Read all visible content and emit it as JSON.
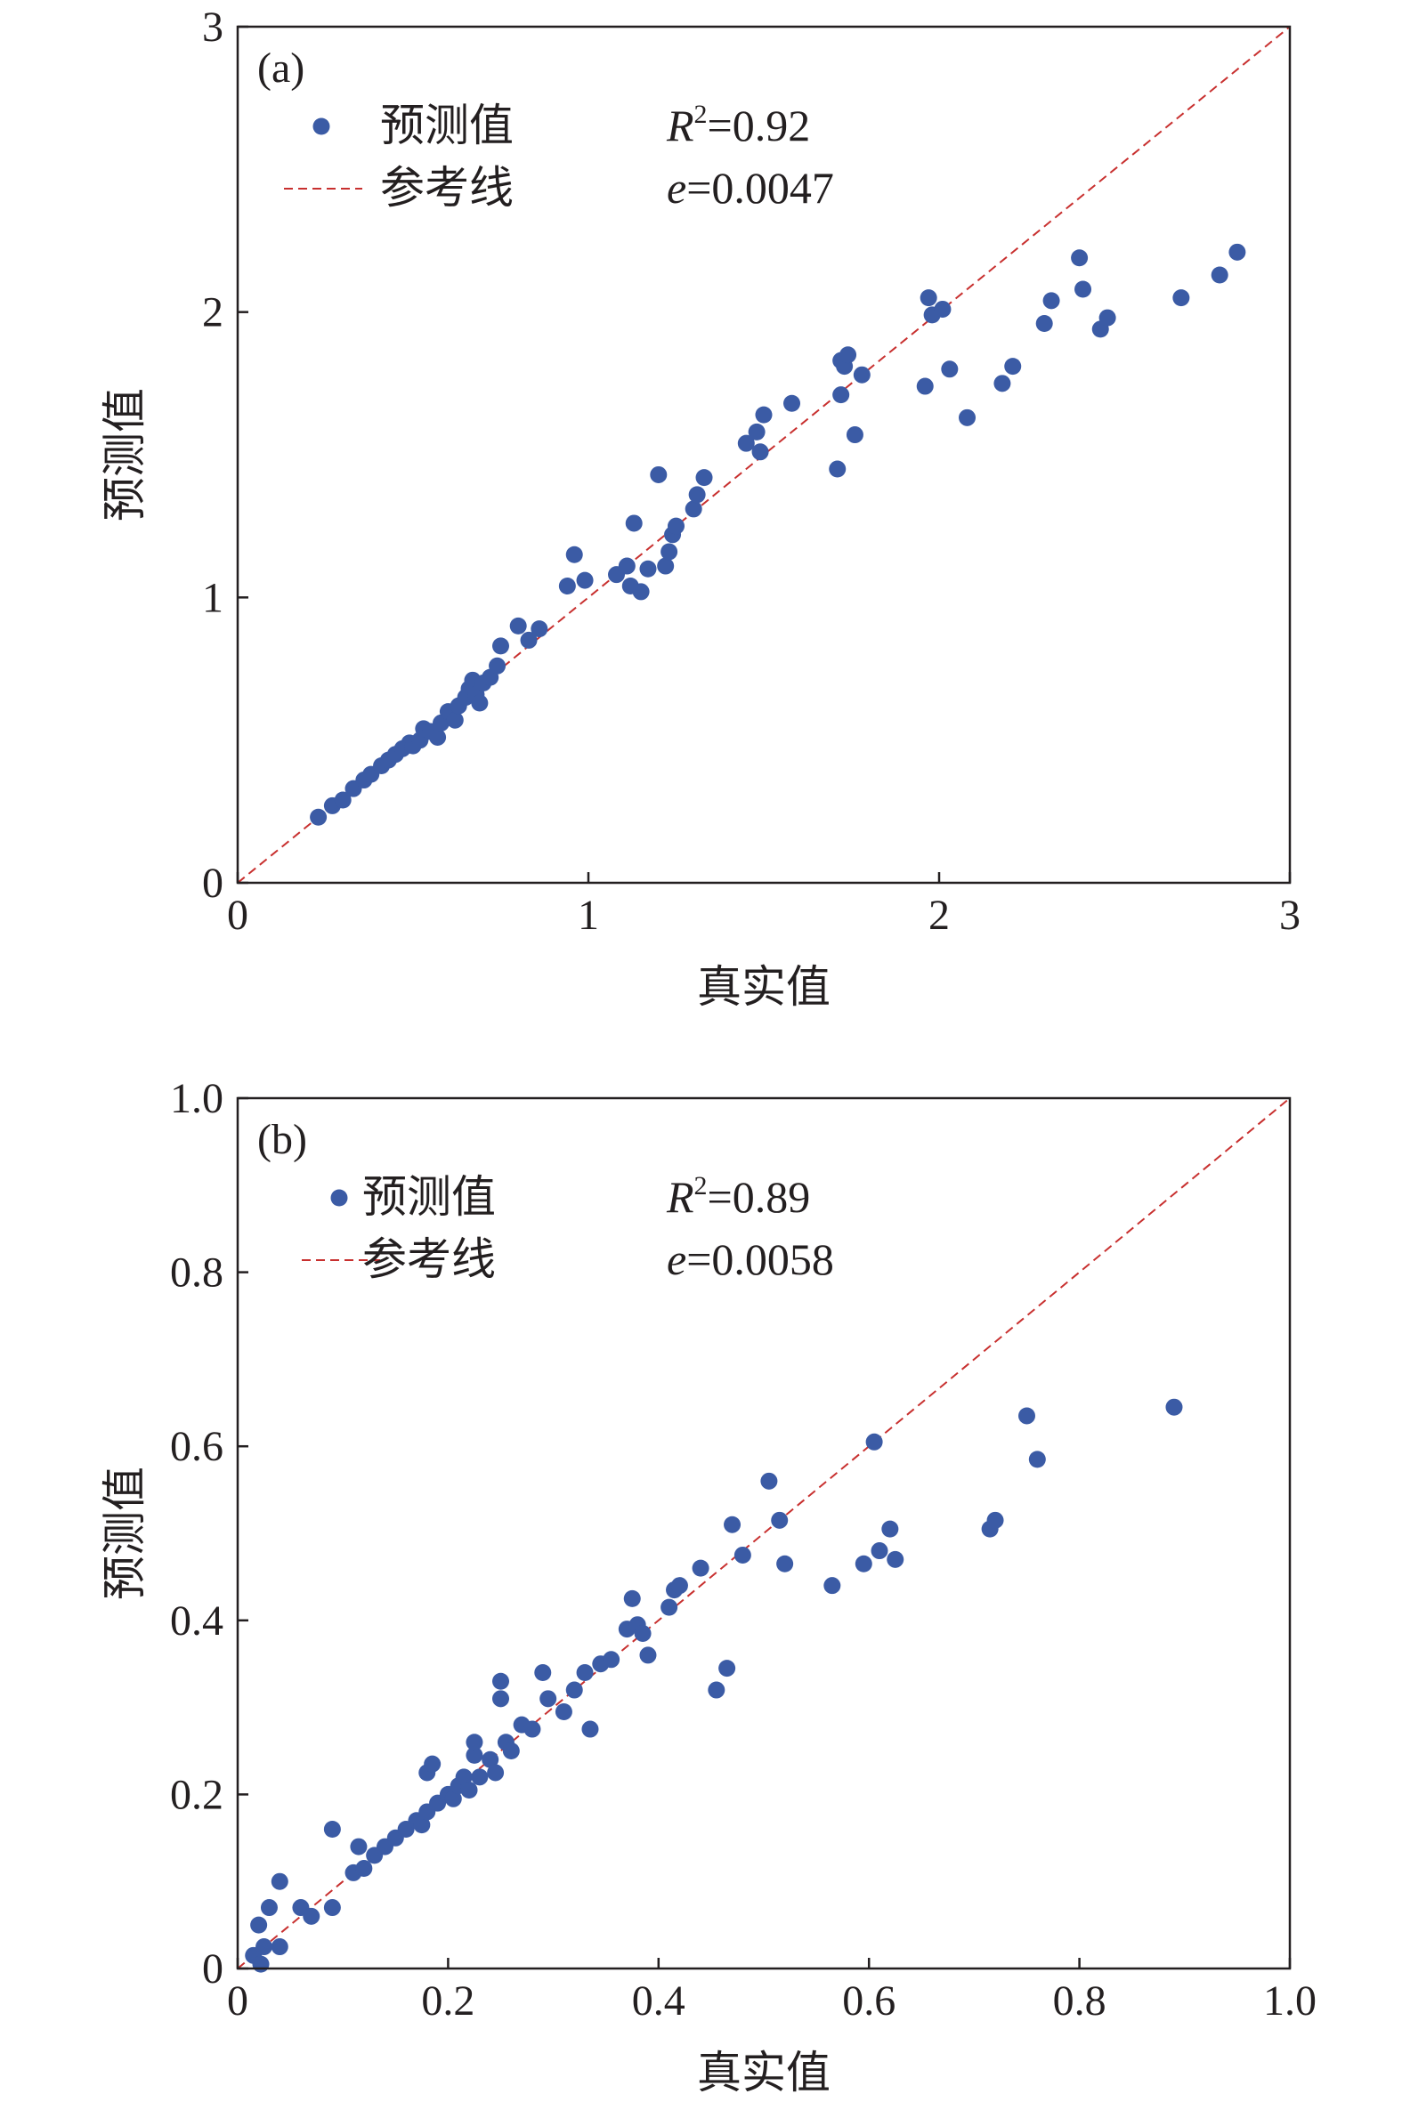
{
  "chart_data": [
    {
      "type": "scatter",
      "panel_label": "(a)",
      "xlabel": "真实值",
      "ylabel": "预测值",
      "xlim": [
        0,
        3
      ],
      "ylim": [
        0,
        3
      ],
      "xticks": [
        "0",
        "1",
        "2",
        "3"
      ],
      "yticks": [
        "0",
        "1",
        "2",
        "3"
      ],
      "legend": {
        "points": "预测值",
        "line": "参考线"
      },
      "stats": {
        "r2": "0.92",
        "e": "0.0047"
      },
      "reference_line": [
        [
          0,
          0
        ],
        [
          3,
          3
        ]
      ],
      "series": [
        {
          "name": "预测值",
          "points": [
            [
              0.23,
              0.23
            ],
            [
              0.27,
              0.27
            ],
            [
              0.3,
              0.29
            ],
            [
              0.33,
              0.33
            ],
            [
              0.36,
              0.36
            ],
            [
              0.38,
              0.38
            ],
            [
              0.41,
              0.41
            ],
            [
              0.43,
              0.43
            ],
            [
              0.45,
              0.45
            ],
            [
              0.47,
              0.47
            ],
            [
              0.49,
              0.49
            ],
            [
              0.5,
              0.48
            ],
            [
              0.52,
              0.5
            ],
            [
              0.53,
              0.54
            ],
            [
              0.55,
              0.53
            ],
            [
              0.57,
              0.51
            ],
            [
              0.58,
              0.56
            ],
            [
              0.6,
              0.6
            ],
            [
              0.62,
              0.57
            ],
            [
              0.63,
              0.62
            ],
            [
              0.65,
              0.65
            ],
            [
              0.66,
              0.68
            ],
            [
              0.67,
              0.71
            ],
            [
              0.68,
              0.66
            ],
            [
              0.69,
              0.63
            ],
            [
              0.7,
              0.7
            ],
            [
              0.72,
              0.72
            ],
            [
              0.74,
              0.76
            ],
            [
              0.75,
              0.83
            ],
            [
              0.8,
              0.9
            ],
            [
              0.83,
              0.85
            ],
            [
              0.86,
              0.89
            ],
            [
              0.94,
              1.04
            ],
            [
              0.96,
              1.15
            ],
            [
              0.99,
              1.06
            ],
            [
              1.08,
              1.08
            ],
            [
              1.11,
              1.11
            ],
            [
              1.12,
              1.04
            ],
            [
              1.13,
              1.26
            ],
            [
              1.15,
              1.02
            ],
            [
              1.17,
              1.1
            ],
            [
              1.2,
              1.43
            ],
            [
              1.22,
              1.11
            ],
            [
              1.23,
              1.16
            ],
            [
              1.24,
              1.22
            ],
            [
              1.25,
              1.25
            ],
            [
              1.3,
              1.31
            ],
            [
              1.31,
              1.36
            ],
            [
              1.33,
              1.42
            ],
            [
              1.45,
              1.54
            ],
            [
              1.48,
              1.58
            ],
            [
              1.49,
              1.51
            ],
            [
              1.5,
              1.64
            ],
            [
              1.58,
              1.68
            ],
            [
              1.71,
              1.45
            ],
            [
              1.72,
              1.71
            ],
            [
              1.72,
              1.83
            ],
            [
              1.73,
              1.81
            ],
            [
              1.74,
              1.85
            ],
            [
              1.76,
              1.57
            ],
            [
              1.78,
              1.78
            ],
            [
              1.96,
              1.74
            ],
            [
              1.97,
              2.05
            ],
            [
              1.98,
              1.99
            ],
            [
              2.01,
              2.01
            ],
            [
              2.03,
              1.8
            ],
            [
              2.08,
              1.63
            ],
            [
              2.18,
              1.75
            ],
            [
              2.21,
              1.81
            ],
            [
              2.3,
              1.96
            ],
            [
              2.32,
              2.04
            ],
            [
              2.4,
              2.19
            ],
            [
              2.41,
              2.08
            ],
            [
              2.46,
              1.94
            ],
            [
              2.48,
              1.98
            ],
            [
              2.69,
              2.05
            ],
            [
              2.8,
              2.13
            ],
            [
              2.85,
              2.21
            ]
          ]
        }
      ]
    },
    {
      "type": "scatter",
      "panel_label": "(b)",
      "xlabel": "真实值",
      "ylabel": "预测值",
      "xlim": [
        0,
        1.0
      ],
      "ylim": [
        0,
        1.0
      ],
      "xticks": [
        "0",
        "0.2",
        "0.4",
        "0.6",
        "0.8",
        "1.0"
      ],
      "yticks": [
        "0",
        "0.2",
        "0.4",
        "0.6",
        "0.8",
        "1.0"
      ],
      "legend": {
        "points": "预测值",
        "line": "参考线"
      },
      "stats": {
        "r2": "0.89",
        "e": "0.0058"
      },
      "reference_line": [
        [
          0,
          0
        ],
        [
          1,
          1
        ]
      ],
      "series": [
        {
          "name": "预测值",
          "points": [
            [
              0.015,
              0.015
            ],
            [
              0.02,
              0.05
            ],
            [
              0.022,
              0.005
            ],
            [
              0.025,
              0.025
            ],
            [
              0.03,
              0.07
            ],
            [
              0.04,
              0.1
            ],
            [
              0.04,
              0.025
            ],
            [
              0.06,
              0.07
            ],
            [
              0.07,
              0.06
            ],
            [
              0.09,
              0.16
            ],
            [
              0.09,
              0.07
            ],
            [
              0.11,
              0.11
            ],
            [
              0.115,
              0.14
            ],
            [
              0.12,
              0.115
            ],
            [
              0.13,
              0.13
            ],
            [
              0.14,
              0.14
            ],
            [
              0.15,
              0.15
            ],
            [
              0.16,
              0.16
            ],
            [
              0.17,
              0.17
            ],
            [
              0.175,
              0.165
            ],
            [
              0.18,
              0.18
            ],
            [
              0.18,
              0.225
            ],
            [
              0.185,
              0.235
            ],
            [
              0.19,
              0.19
            ],
            [
              0.2,
              0.2
            ],
            [
              0.205,
              0.195
            ],
            [
              0.21,
              0.21
            ],
            [
              0.215,
              0.22
            ],
            [
              0.22,
              0.205
            ],
            [
              0.225,
              0.245
            ],
            [
              0.225,
              0.26
            ],
            [
              0.23,
              0.22
            ],
            [
              0.24,
              0.24
            ],
            [
              0.245,
              0.225
            ],
            [
              0.25,
              0.33
            ],
            [
              0.25,
              0.31
            ],
            [
              0.255,
              0.26
            ],
            [
              0.26,
              0.25
            ],
            [
              0.27,
              0.28
            ],
            [
              0.28,
              0.275
            ],
            [
              0.29,
              0.34
            ],
            [
              0.295,
              0.31
            ],
            [
              0.31,
              0.295
            ],
            [
              0.32,
              0.32
            ],
            [
              0.33,
              0.34
            ],
            [
              0.335,
              0.275
            ],
            [
              0.345,
              0.35
            ],
            [
              0.355,
              0.355
            ],
            [
              0.37,
              0.39
            ],
            [
              0.375,
              0.425
            ],
            [
              0.38,
              0.395
            ],
            [
              0.385,
              0.385
            ],
            [
              0.39,
              0.36
            ],
            [
              0.41,
              0.415
            ],
            [
              0.415,
              0.435
            ],
            [
              0.42,
              0.44
            ],
            [
              0.44,
              0.46
            ],
            [
              0.455,
              0.32
            ],
            [
              0.465,
              0.345
            ],
            [
              0.47,
              0.51
            ],
            [
              0.48,
              0.475
            ],
            [
              0.505,
              0.56
            ],
            [
              0.515,
              0.515
            ],
            [
              0.52,
              0.465
            ],
            [
              0.565,
              0.44
            ],
            [
              0.595,
              0.465
            ],
            [
              0.605,
              0.605
            ],
            [
              0.61,
              0.48
            ],
            [
              0.62,
              0.505
            ],
            [
              0.625,
              0.47
            ],
            [
              0.715,
              0.505
            ],
            [
              0.72,
              0.515
            ],
            [
              0.75,
              0.635
            ],
            [
              0.76,
              0.585
            ],
            [
              0.89,
              0.645
            ]
          ]
        }
      ]
    }
  ]
}
